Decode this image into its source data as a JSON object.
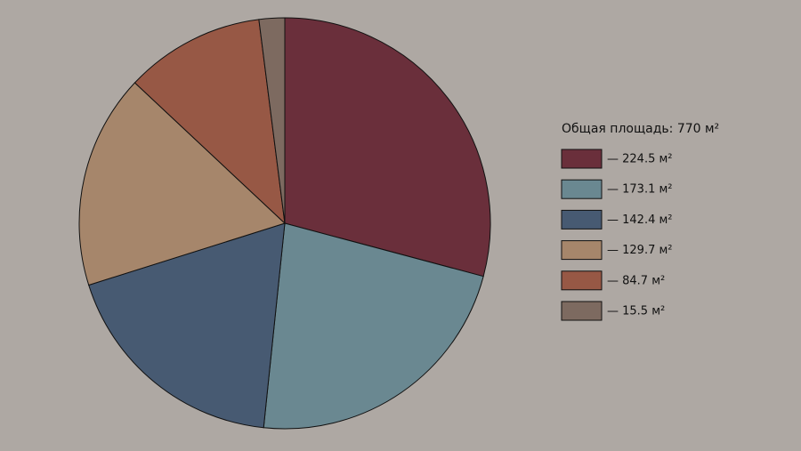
{
  "chart_data": {
    "type": "pie",
    "title": "Общая площадь: 770 м²",
    "categories": [
      "— 224.5 м²",
      "— 173.1 м²",
      "— 142.4 м²",
      "— 129.7 м²",
      "— 84.7 м²",
      "— 15.5 м²"
    ],
    "values": [
      224.5,
      173.1,
      142.4,
      129.7,
      84.7,
      15.5
    ],
    "colors": [
      "#6a2f3b",
      "#6a8891",
      "#475a72",
      "#a6866b",
      "#975845",
      "#7d6a60"
    ],
    "legend": "right"
  }
}
